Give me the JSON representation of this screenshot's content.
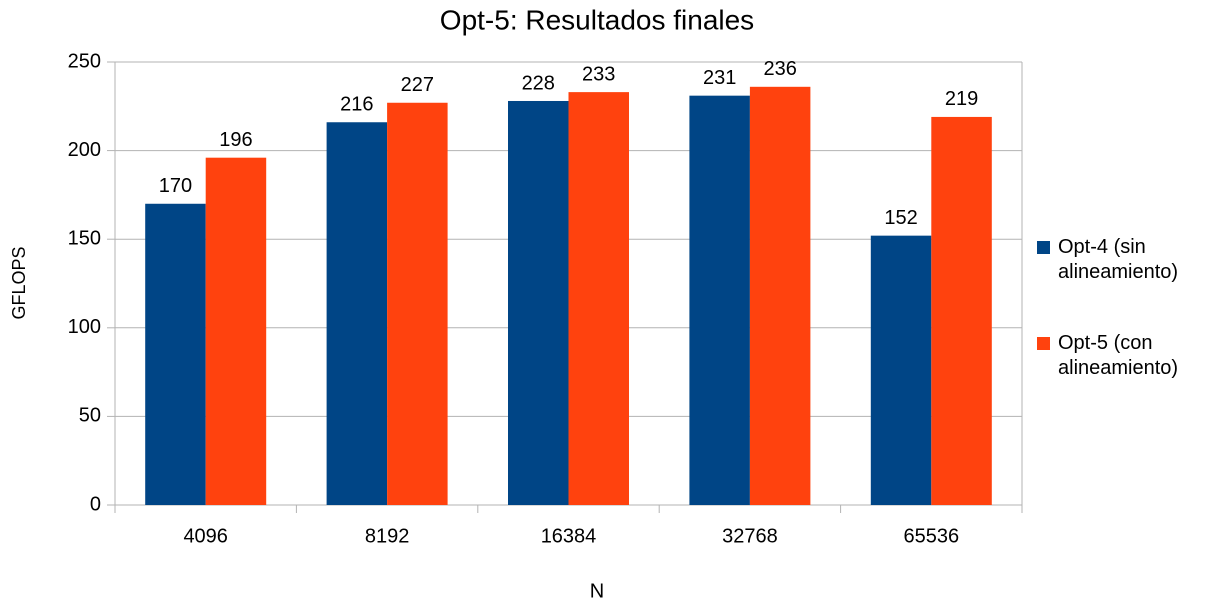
{
  "chart_data": {
    "type": "bar",
    "title": "Opt-5: Resultados finales",
    "x_label": "N",
    "y_label": "GFLOPS",
    "categories": [
      "4096",
      "8192",
      "16384",
      "32768",
      "65536"
    ],
    "series": [
      {
        "name": "Opt-4 (sin alineamiento)",
        "color": "#004586",
        "values": [
          170,
          216,
          228,
          231,
          152
        ]
      },
      {
        "name": "Opt-5 (con alineamiento)",
        "color": "#ff420e",
        "values": [
          196,
          227,
          233,
          236,
          219
        ]
      }
    ],
    "ylim": [
      0,
      250
    ],
    "yticks": [
      0,
      50,
      100,
      150,
      200,
      250
    ],
    "grid": true,
    "legend": "right"
  }
}
